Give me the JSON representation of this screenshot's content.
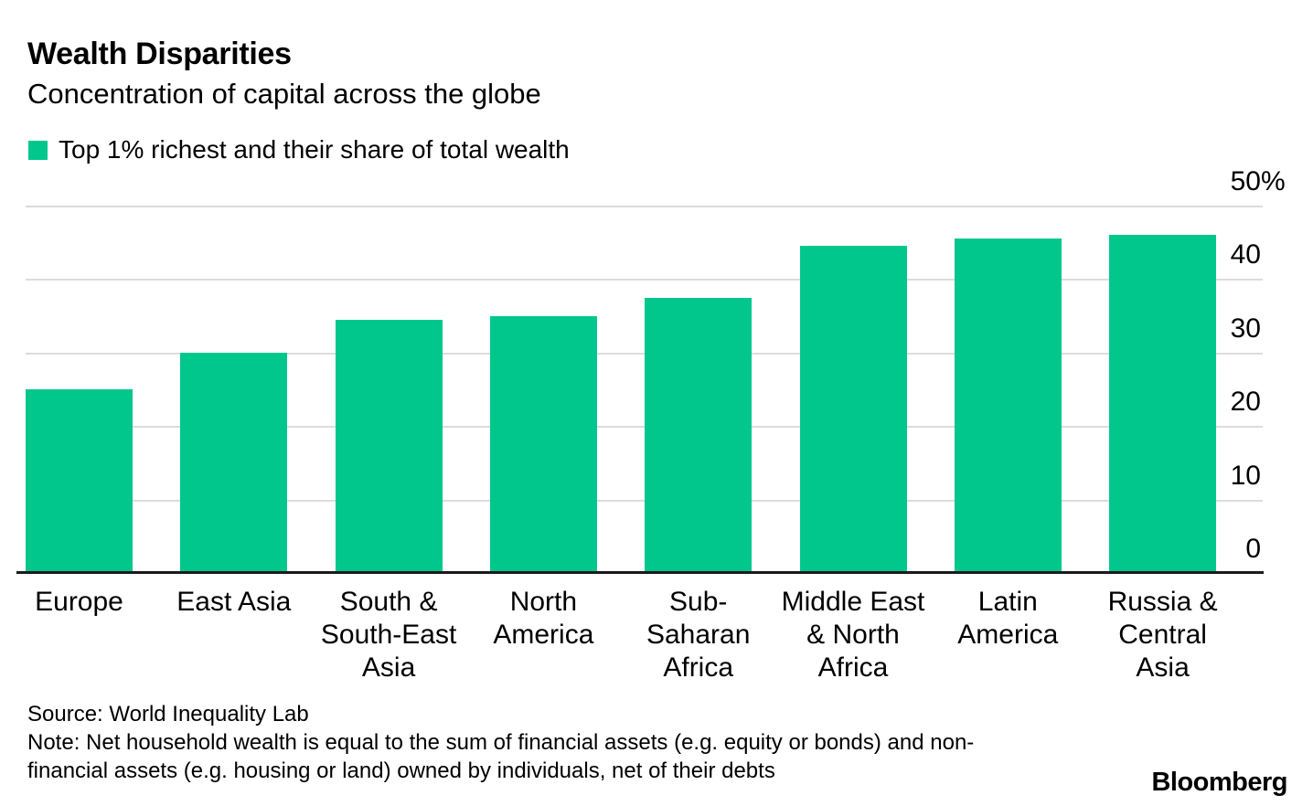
{
  "header": {
    "title": "Wealth Disparities",
    "subtitle": "Concentration of capital across the globe"
  },
  "legend": {
    "label": "Top 1% richest and their share of total wealth",
    "swatch_color": "#01c78d"
  },
  "chart_data": {
    "type": "bar",
    "title": "Wealth Disparities",
    "subtitle": "Concentration of capital across the globe",
    "series_label": "Top 1% richest and their share of total wealth",
    "unit": "%",
    "categories": [
      "Europe",
      "East Asia",
      "South & South-East Asia",
      "North America",
      "Sub-Saharan Africa",
      "Middle East & North Africa",
      "Latin America",
      "Russia & Central Asia"
    ],
    "category_label_lines": [
      [
        "Europe"
      ],
      [
        "East Asia"
      ],
      [
        "South &",
        "South-East",
        "Asia"
      ],
      [
        "North",
        "America"
      ],
      [
        "Sub-Saharan",
        "Africa"
      ],
      [
        "Middle East",
        "& North",
        "Africa"
      ],
      [
        "Latin",
        "America"
      ],
      [
        "Russia &",
        "Central",
        "Asia"
      ]
    ],
    "values": [
      25,
      30,
      34.5,
      35,
      37.5,
      44.5,
      45.5,
      46
    ],
    "ylim": [
      0,
      50
    ],
    "yticks": [
      0,
      10,
      20,
      30,
      40,
      50
    ],
    "ytick_labels": [
      "0",
      "10",
      "20",
      "30",
      "40",
      "50%"
    ],
    "grid": true,
    "legend_position": "top-left",
    "bar_color": "#01c78d",
    "gridline_color": "#dcdcdc",
    "axis_color": "#1a1a1a"
  },
  "footer": {
    "source": "Source: World Inequality Lab",
    "note_line1": "Note: Net household wealth is equal to the sum of financial assets (e.g. equity or bonds) and non-",
    "note_line2": "financial assets (e.g. housing or land) owned by individuals, net of their debts",
    "brand": "Bloomberg"
  }
}
